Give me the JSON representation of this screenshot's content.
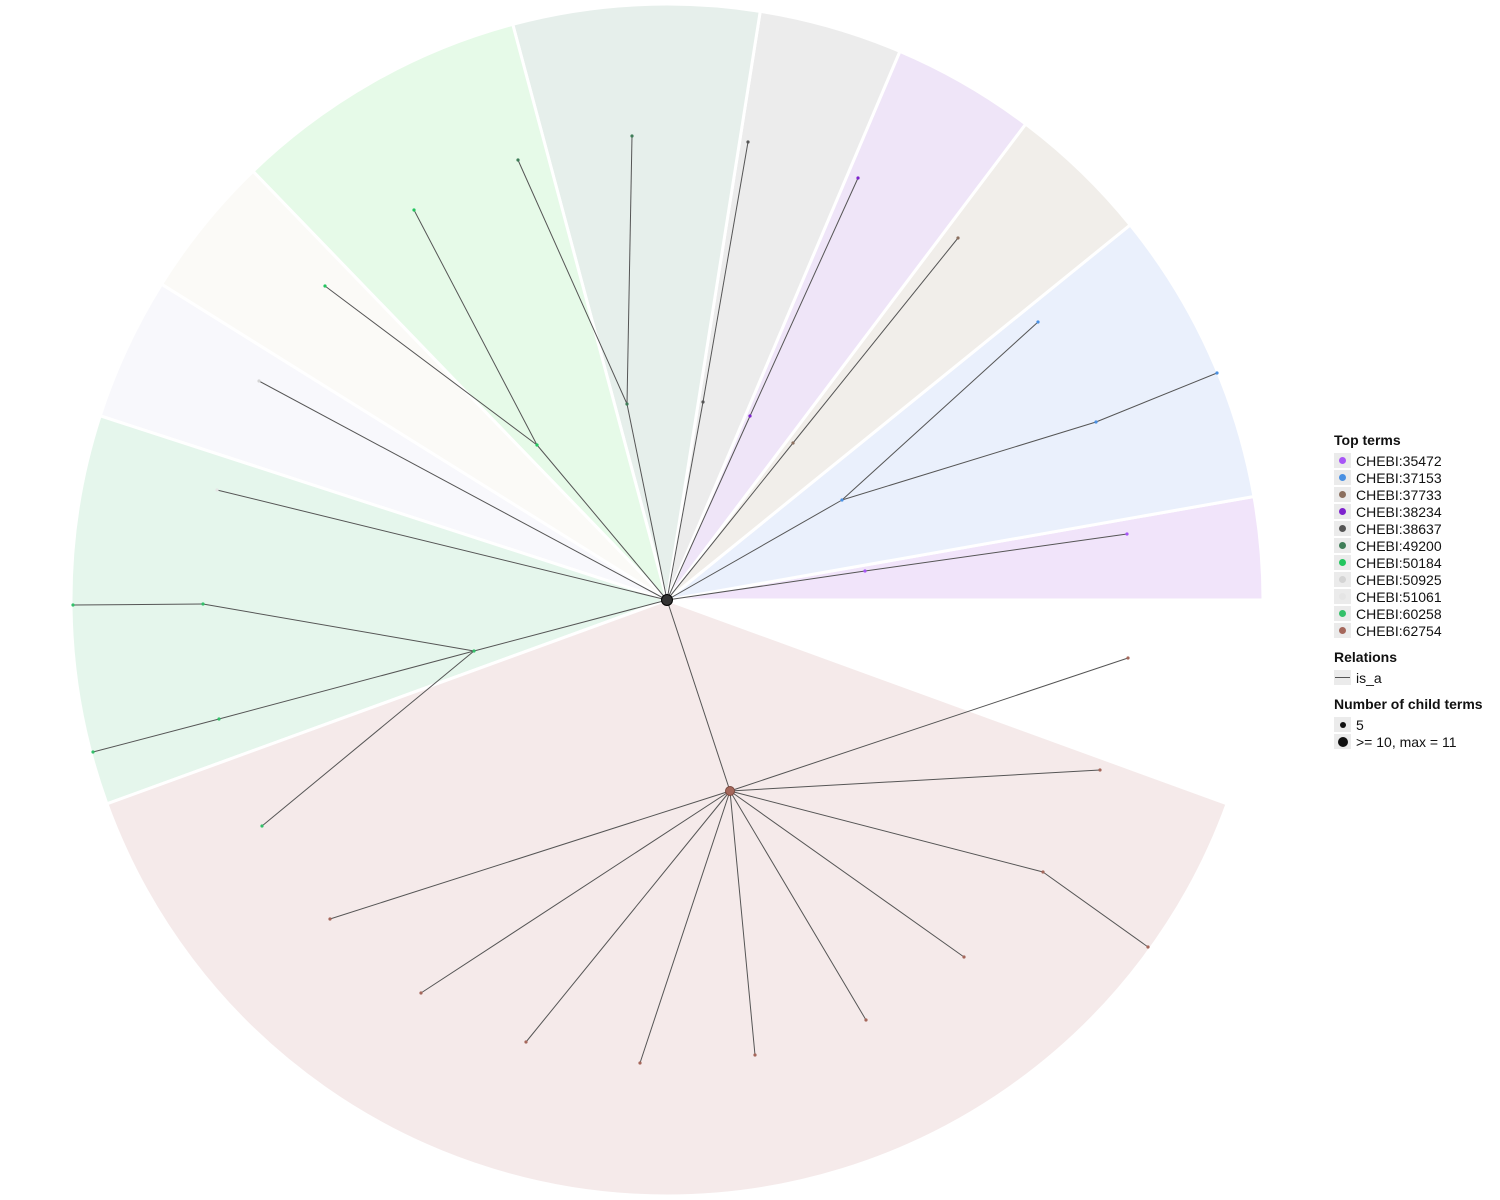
{
  "legend": {
    "top_terms_title": "Top terms",
    "top_terms": [
      {
        "label": "CHEBI:35472",
        "color": "#a855f7"
      },
      {
        "label": "CHEBI:37153",
        "color": "#4a90e2"
      },
      {
        "label": "CHEBI:37733",
        "color": "#8b6f5e"
      },
      {
        "label": "CHEBI:38234",
        "color": "#7e22ce"
      },
      {
        "label": "CHEBI:38637",
        "color": "#555555"
      },
      {
        "label": "CHEBI:49200",
        "color": "#3f7d58"
      },
      {
        "label": "CHEBI:50184",
        "color": "#22c55e"
      },
      {
        "label": "CHEBI:50925",
        "color": "#d4d4d4"
      },
      {
        "label": "CHEBI:51061",
        "color": "#e5e5e5"
      },
      {
        "label": "CHEBI:60258",
        "color": "#34c06a"
      },
      {
        "label": "CHEBI:62754",
        "color": "#a5675b"
      }
    ],
    "relations_title": "Relations",
    "relations": [
      {
        "label": "is_a"
      }
    ],
    "child_terms_title": "Number of child terms",
    "child_terms": [
      {
        "label": "5",
        "magnitude": 5
      },
      {
        "label": ">= 10, max = 11",
        "magnitude": 11
      }
    ]
  },
  "diagram": {
    "root_color": "#333333",
    "edge_color": "#555555",
    "sectors": [
      {
        "term": "CHEBI:35472",
        "color": "#f1e4fa",
        "span_deg": 10
      },
      {
        "term": "CHEBI:37153",
        "color": "#eaf0fc",
        "span_deg": 29
      },
      {
        "term": "CHEBI:37733",
        "color": "#f1eeea",
        "span_deg": 14
      },
      {
        "term": "CHEBI:38234",
        "color": "#efe5f8",
        "span_deg": 14
      },
      {
        "term": "CHEBI:38637",
        "color": "#ececec",
        "span_deg": 14
      },
      {
        "term": "CHEBI:49200",
        "color": "#e6efeb",
        "span_deg": 24
      },
      {
        "term": "CHEBI:50184",
        "color": "#e6fae8",
        "span_deg": 29
      },
      {
        "term": "CHEBI:50925",
        "color": "#fbfaf7",
        "span_deg": 14
      },
      {
        "term": "CHEBI:51061",
        "color": "#f8f8fc",
        "span_deg": 14
      },
      {
        "term": "CHEBI:60258",
        "color": "#e5f6ec",
        "span_deg": 38
      },
      {
        "term": "CHEBI:62754",
        "color": "#f5eaea",
        "span_deg": 140
      }
    ]
  }
}
